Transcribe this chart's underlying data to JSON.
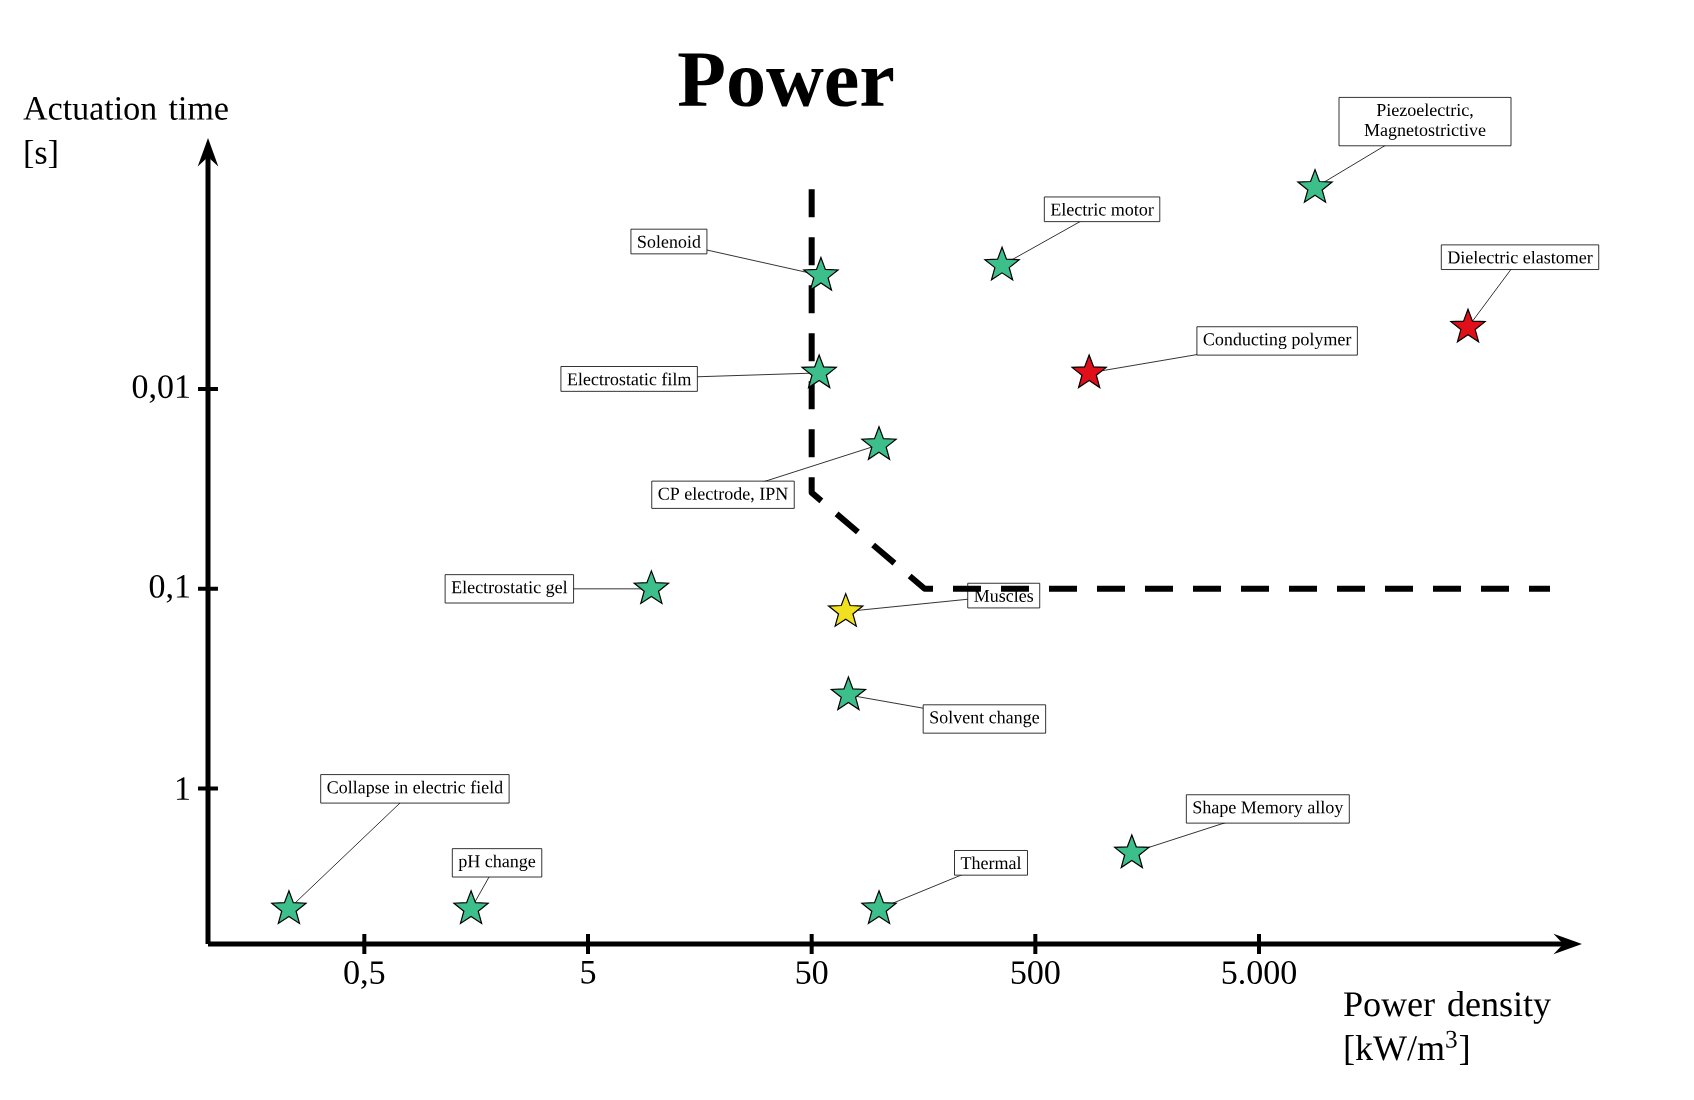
{
  "chart_data": {
    "type": "scatter",
    "title": "Power",
    "xlabel": "Power density [kW/m$^{3}$]",
    "ylabel": "Actuation time [s]",
    "log": "xy",
    "marker": "star",
    "xlim": [
      0.1,
      100000
    ],
    "ylim": [
      6,
      0.0008
    ],
    "xticks": [
      {
        "value": 0.5,
        "label": "0,5"
      },
      5,
      50,
      500,
      {
        "value": 5000,
        "label": "5.000"
      }
    ],
    "yticks": [
      {
        "value": 0.01,
        "label": "0,01"
      },
      {
        "value": 0.1,
        "label": "0,1"
      },
      1
    ],
    "series": [
      {
        "color": "#3cbf8a",
        "x": [
          0.23,
          1.5,
          9.6,
          54,
          55,
          100,
          73,
          100,
          355,
          8900,
          1350
        ],
        "values": [
          4.0,
          4.0,
          0.1,
          0.0083,
          0.0027,
          0.019,
          0.34,
          4.0,
          0.0024,
          0.00098,
          2.1
        ]
      },
      {
        "color": "#e0101a",
        "x": [
          870,
          43000
        ],
        "values": [
          0.0083,
          0.0049
        ]
      },
      {
        "color": "#f0e020",
        "x": [
          71
        ],
        "values": [
          0.13
        ]
      },
      {
        "type": "line",
        "color": "#000000",
        "line_style": "dashed",
        "marker": "none",
        "x": [
          50,
          50,
          160,
          100000
        ],
        "values": [
          0.001,
          0.033,
          0.1,
          0.1
        ]
      }
    ],
    "annotations": [
      {
        "text": "Collapse in electric field",
        "x": 0.23,
        "y": 4.0
      },
      {
        "text": "pH change",
        "x": 1.5,
        "y": 4.0
      },
      {
        "text": "Electrostatic gel",
        "x": 9.6,
        "y": 0.1
      },
      {
        "text": "Electrostatic film",
        "x": 54,
        "y": 0.0083
      },
      {
        "text": "Solenoid",
        "x": 55,
        "y": 0.0027
      },
      {
        "text": "CP electrode, IPN",
        "x": 100,
        "y": 0.019
      },
      {
        "text": "Solvent change",
        "x": 73,
        "y": 0.34
      },
      {
        "text": "Thermal",
        "x": 100,
        "y": 4.0
      },
      {
        "text": "Electric motor",
        "x": 355,
        "y": 0.0024
      },
      {
        "text": "Piezoelectric, Magnetostrictive",
        "x": 8900,
        "y": 0.00098
      },
      {
        "text": "Shape Memory alloy",
        "x": 1350,
        "y": 2.1
      },
      {
        "text": "Conducting polymer",
        "x": 870,
        "y": 0.0083
      },
      {
        "text": "Dielectric elastomer",
        "x": 43000,
        "y": 0.0049
      },
      {
        "text": "Muscles",
        "x": 71,
        "y": 0.13
      }
    ]
  }
}
